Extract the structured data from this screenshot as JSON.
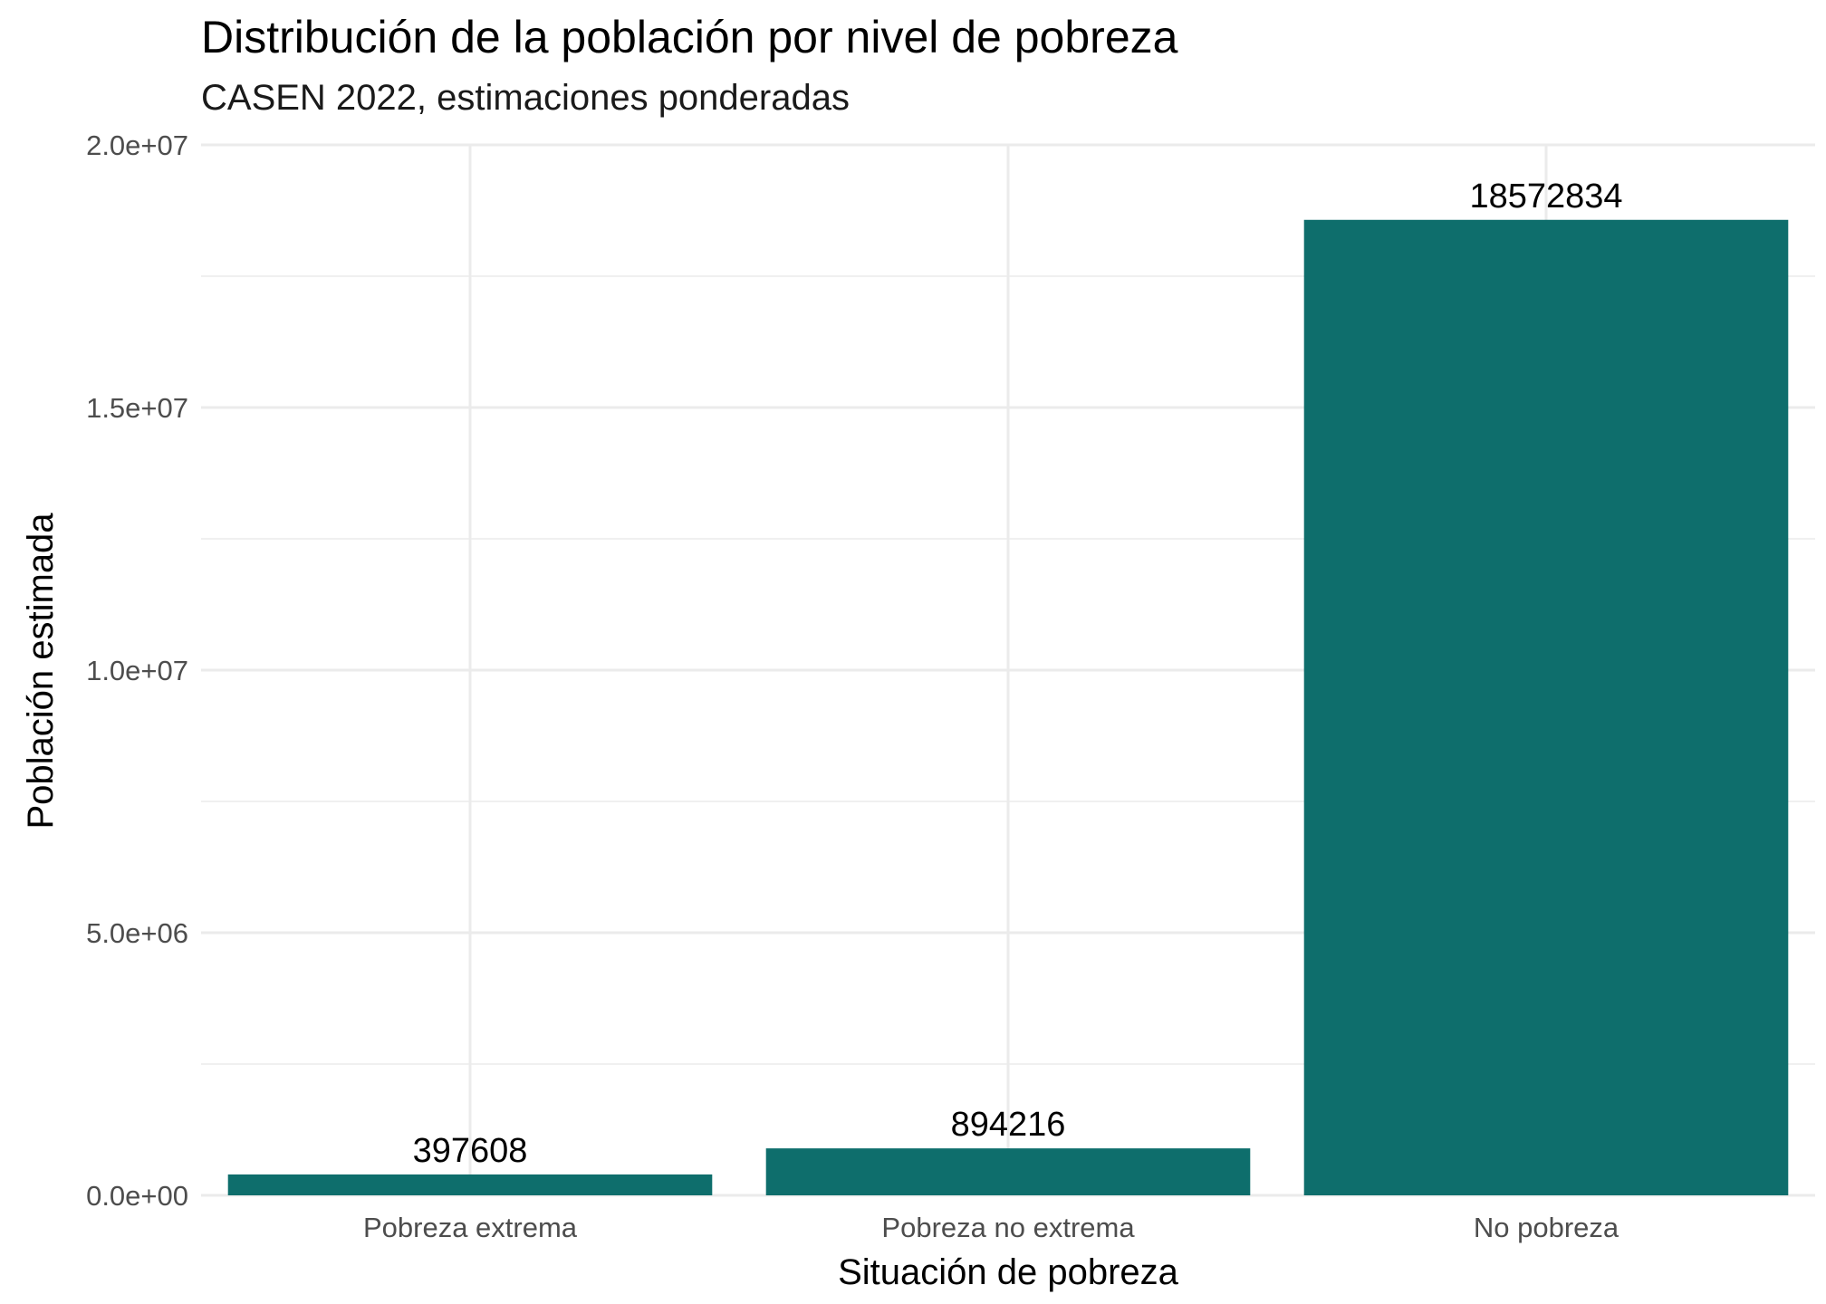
{
  "chart_data": {
    "type": "bar",
    "title": "Distribución de la población por nivel de pobreza",
    "subtitle": "CASEN 2022, estimaciones ponderadas",
    "xlabel": "Situación de pobreza",
    "ylabel": "Población estimada",
    "categories": [
      "Pobreza extrema",
      "Pobreza no extrema",
      "No pobreza"
    ],
    "values": [
      397608,
      894216,
      18572834
    ],
    "data_labels": [
      "397608",
      "894216",
      "18572834"
    ],
    "ylim": [
      0,
      20000000
    ],
    "yticks": [
      0,
      5000000,
      10000000,
      15000000,
      20000000
    ],
    "ytick_labels": [
      "0.0e+00",
      "5.0e+06",
      "1.0e+07",
      "1.5e+07",
      "2.0e+07"
    ],
    "grid": true,
    "legend": "none",
    "bar_color": "#0E6E6C",
    "grid_color": "#EBEBEB"
  }
}
